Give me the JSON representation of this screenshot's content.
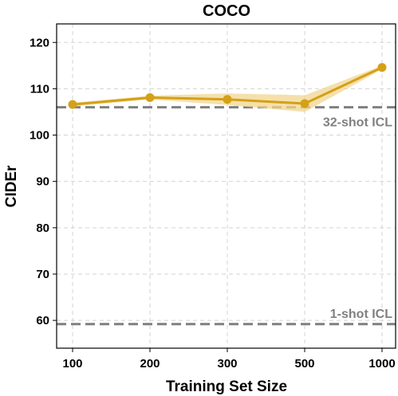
{
  "chart_data": {
    "type": "line",
    "title": "COCO",
    "xlabel": "Training Set Size",
    "ylabel": "CIDEr",
    "categories": [
      "100",
      "200",
      "300",
      "500",
      "1000"
    ],
    "ylim": [
      54,
      124
    ],
    "yticks": [
      60,
      70,
      80,
      90,
      100,
      110,
      120
    ],
    "grid": true,
    "series": [
      {
        "values": [
          106.6,
          108.1,
          107.7,
          106.8,
          114.6
        ],
        "band_low": [
          106.2,
          107.7,
          106.5,
          105.0,
          114.2
        ],
        "band_high": [
          107.0,
          108.5,
          109.0,
          108.6,
          115.0
        ],
        "color": "#d4a017",
        "band_color": "#f2d690"
      }
    ],
    "reference_lines": [
      {
        "label": "32-shot ICL",
        "value": 106.0,
        "color": "#808080"
      },
      {
        "label": "1-shot ICL",
        "value": 59.2,
        "color": "#808080"
      }
    ]
  }
}
